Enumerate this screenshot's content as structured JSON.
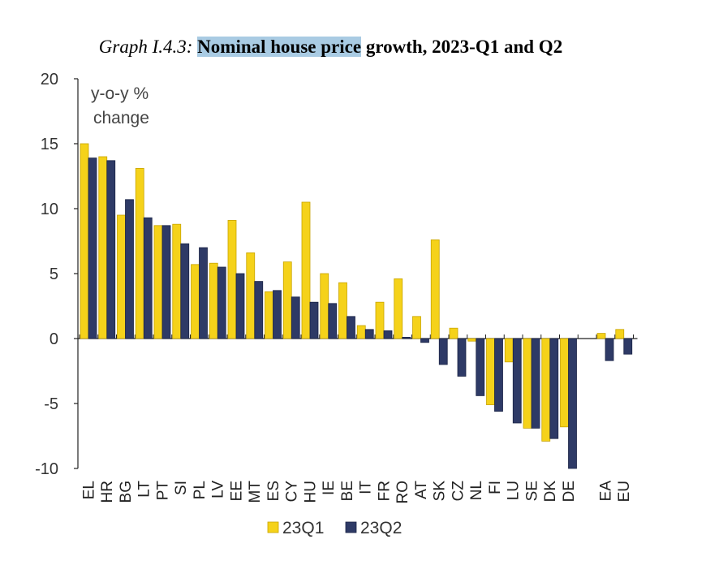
{
  "title": {
    "prefix": "Graph I.4.3:",
    "highlighted": "Nominal house price",
    "rest": "growth, 2023-Q1 and Q2"
  },
  "colors": {
    "series1_fill": "#f5d21a",
    "series1_stroke": "#c8a400",
    "series2_fill": "#2e3a66",
    "series2_stroke": "#1c2546",
    "highlight": "#a9cbe3"
  },
  "chart_data": {
    "type": "bar",
    "ylabel": "y-o-y %\nchange",
    "ylim": [
      -10,
      20
    ],
    "yticks": [
      20,
      15,
      10,
      5,
      0,
      -5,
      -10
    ],
    "legend_position": "bottom",
    "categories": [
      "EL",
      "HR",
      "BG",
      "LT",
      "PT",
      "SI",
      "PL",
      "LV",
      "EE",
      "MT",
      "ES",
      "CY",
      "HU",
      "IE",
      "BE",
      "IT",
      "FR",
      "RO",
      "AT",
      "SK",
      "CZ",
      "NL",
      "FI",
      "LU",
      "SE",
      "DK",
      "DE",
      "",
      "EA",
      "EU"
    ],
    "series": [
      {
        "name": "23Q1",
        "values": [
          15.0,
          14.0,
          9.5,
          13.1,
          8.7,
          8.8,
          5.7,
          5.8,
          9.1,
          6.6,
          3.6,
          5.9,
          10.5,
          5.0,
          4.3,
          1.0,
          2.8,
          4.6,
          1.7,
          7.6,
          0.8,
          -0.2,
          -5.1,
          -1.8,
          -6.9,
          -7.9,
          -6.8,
          null,
          0.4,
          0.7
        ]
      },
      {
        "name": "23Q2",
        "values": [
          13.9,
          13.7,
          10.7,
          9.3,
          8.7,
          7.3,
          7.0,
          5.5,
          5.0,
          4.4,
          3.7,
          3.2,
          2.8,
          2.7,
          1.7,
          0.7,
          0.6,
          0.1,
          -0.3,
          -2.0,
          -2.9,
          -4.4,
          -5.6,
          -6.5,
          -6.9,
          -7.7,
          -10.0,
          null,
          -1.7,
          -1.2
        ]
      }
    ]
  }
}
